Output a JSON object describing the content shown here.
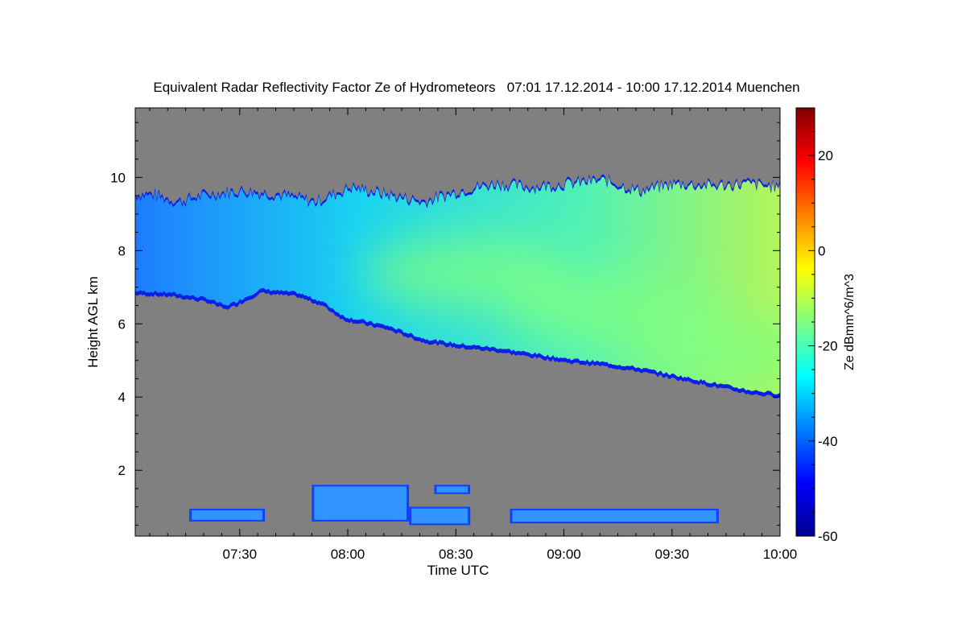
{
  "chart_data": {
    "type": "heatmap",
    "title": "Equivalent Radar Reflectivity Factor Ze of Hydrometeors   07:01 17.12.2014 - 10:00 17.12.2014 Muenchen",
    "xlabel": "Time UTC",
    "ylabel": "Height AGL km",
    "colorbar_label": "Ze dBmm^6/m^3",
    "xlim": [
      "07:01",
      "10:00"
    ],
    "ylim": [
      0.2,
      11.9
    ],
    "x_ticks": [
      "07:30",
      "08:00",
      "08:30",
      "09:00",
      "09:30",
      "10:00"
    ],
    "y_ticks": [
      2,
      4,
      6,
      8,
      10
    ],
    "colorbar_range": [
      -60,
      30
    ],
    "colorbar_ticks": [
      -60,
      -40,
      -20,
      0,
      20
    ],
    "background_color": "#808080",
    "colormap": [
      "#00008f",
      "#0000ff",
      "#0080ff",
      "#00ffff",
      "#80ff80",
      "#ffff00",
      "#ff8000",
      "#ff0000",
      "#800000"
    ],
    "upper_layer": {
      "top_km": [
        [
          0,
          9.5
        ],
        [
          5,
          9.5
        ],
        [
          12,
          9.3
        ],
        [
          20,
          9.5
        ],
        [
          30,
          9.6
        ],
        [
          40,
          9.5
        ],
        [
          50,
          9.3
        ],
        [
          60,
          9.7
        ],
        [
          70,
          9.5
        ],
        [
          80,
          9.3
        ],
        [
          90,
          9.6
        ],
        [
          100,
          9.8
        ],
        [
          110,
          9.7
        ],
        [
          120,
          9.8
        ],
        [
          130,
          9.9
        ],
        [
          140,
          9.6
        ],
        [
          150,
          9.8
        ],
        [
          160,
          9.75
        ],
        [
          170,
          9.8
        ],
        [
          179,
          9.7
        ]
      ],
      "bottom_km": [
        [
          0,
          6.9
        ],
        [
          10,
          6.85
        ],
        [
          20,
          6.7
        ],
        [
          25,
          6.5
        ],
        [
          28,
          6.6
        ],
        [
          35,
          6.95
        ],
        [
          45,
          6.85
        ],
        [
          52,
          6.6
        ],
        [
          58,
          6.2
        ],
        [
          70,
          5.95
        ],
        [
          80,
          5.6
        ],
        [
          90,
          5.45
        ],
        [
          100,
          5.35
        ],
        [
          110,
          5.2
        ],
        [
          120,
          5.05
        ],
        [
          130,
          4.95
        ],
        [
          140,
          4.8
        ],
        [
          150,
          4.6
        ],
        [
          160,
          4.4
        ],
        [
          170,
          4.2
        ],
        [
          179,
          4.1
        ]
      ],
      "core_ze": [
        [
          92,
          7.4,
          -12
        ],
        [
          132,
          6.4,
          -10
        ],
        [
          168,
          5.2,
          -10
        ]
      ]
    },
    "lower_echoes": [
      {
        "start": "07:16",
        "end": "07:37",
        "bottom_km": 0.6,
        "top_km": 0.95
      },
      {
        "start": "07:50",
        "end": "08:17",
        "bottom_km": 0.6,
        "top_km": 1.6
      },
      {
        "start": "08:17",
        "end": "08:34",
        "bottom_km": 0.5,
        "top_km": 1.0
      },
      {
        "start": "08:24",
        "end": "08:34",
        "bottom_km": 1.35,
        "top_km": 1.6
      },
      {
        "start": "08:45",
        "end": "09:43",
        "bottom_km": 0.55,
        "top_km": 0.95
      }
    ]
  }
}
